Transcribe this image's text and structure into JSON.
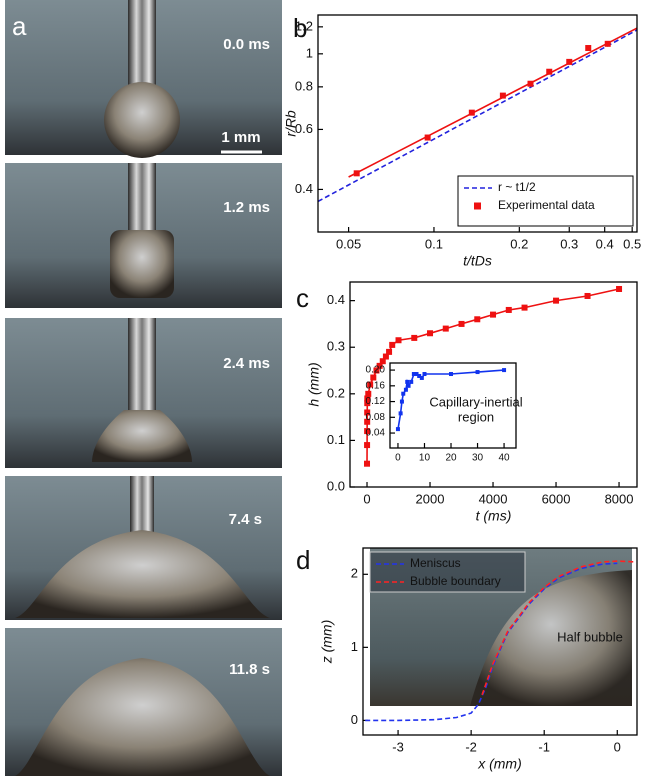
{
  "panel_a": {
    "label": "a",
    "frames": [
      "0.0 ms",
      "1.2 ms",
      "2.4 ms",
      "7.4 s",
      "11.8 s"
    ],
    "scale_bar": "1 mm"
  },
  "chart_data": [
    {
      "type": "line",
      "panel_label": "b",
      "xlabel": "t/tDs",
      "ylabel": "r/Rb",
      "xscale": "log",
      "yscale": "log",
      "xlim": [
        0.039,
        0.52
      ],
      "ylim": [
        0.3,
        1.3
      ],
      "xticks": [
        0.05,
        0.1,
        0.2,
        0.3,
        0.4,
        0.5
      ],
      "yticks": [
        0.4,
        0.6,
        0.8,
        1,
        1.2
      ],
      "legend": "lower right",
      "series": [
        {
          "name": "r ~ t1/2",
          "color": "#2222dd",
          "linestyle": "dashed",
          "x": [
            0.039,
            0.52
          ],
          "values": [
            0.369,
            1.175
          ]
        },
        {
          "color": "#ee1111",
          "linestyle": "solid",
          "x": [
            0.05,
            0.52
          ],
          "values": [
            0.435,
            1.19
          ]
        },
        {
          "name": "Experimental data",
          "color": "#ee1111",
          "linestyle": "none",
          "marker": "square",
          "x": [
            0.0534,
            0.095,
            0.136,
            0.175,
            0.219,
            0.255,
            0.3,
            0.35,
            0.41
          ],
          "values": [
            0.446,
            0.568,
            0.672,
            0.754,
            0.817,
            0.886,
            0.947,
            1.04,
            1.07
          ]
        }
      ]
    },
    {
      "type": "line",
      "panel_label": "c",
      "xlabel": "t (ms)",
      "ylabel": "h (mm)",
      "xlim": [
        -540,
        8570
      ],
      "ylim": [
        0,
        0.44
      ],
      "xticks": [
        0,
        2000,
        4000,
        6000,
        8000
      ],
      "yticks": [
        {
          "value": 0,
          "label": "0.0"
        },
        0.1,
        0.2,
        0.3,
        0.4
      ],
      "series": [
        {
          "color": "#ee1111",
          "linestyle": "solid",
          "marker": "square",
          "x": [
            0,
            2,
            4,
            5,
            6,
            8,
            10,
            20,
            40,
            100,
            200,
            300,
            400,
            500,
            600,
            700,
            800,
            1000,
            1500,
            2000,
            2500,
            3000,
            3500,
            4000,
            4500,
            5000,
            6000,
            7000,
            8000
          ],
          "values": [
            0.05,
            0.09,
            0.12,
            0.14,
            0.16,
            0.18,
            0.19,
            0.19,
            0.2,
            0.22,
            0.235,
            0.25,
            0.26,
            0.27,
            0.28,
            0.29,
            0.305,
            0.315,
            0.32,
            0.33,
            0.34,
            0.35,
            0.36,
            0.37,
            0.38,
            0.385,
            0.4,
            0.41,
            0.425
          ]
        }
      ]
    },
    {
      "type": "line",
      "annotations": [
        "Capillary-inertial",
        "region"
      ],
      "xlim": [
        -3,
        44.5
      ],
      "ylim": [
        0.002,
        0.218
      ],
      "xticks": [
        0,
        10,
        20,
        30,
        40
      ],
      "yticks": [
        0.04,
        0.08,
        0.12,
        0.16,
        {
          "value": 0.2,
          "label": "0.20"
        }
      ],
      "series": [
        {
          "color": "#1133ee",
          "linestyle": "solid",
          "marker": "square",
          "x": [
            0,
            1,
            1.5,
            2,
            3,
            3.5,
            4,
            5,
            6,
            7,
            8,
            9,
            10,
            20,
            30,
            40
          ],
          "values": [
            0.05,
            0.09,
            0.12,
            0.14,
            0.15,
            0.17,
            0.16,
            0.17,
            0.19,
            0.19,
            0.185,
            0.18,
            0.19,
            0.19,
            0.195,
            0.2
          ]
        }
      ]
    },
    {
      "type": "line",
      "panel_label": "d",
      "xlabel": "x (mm)",
      "ylabel": "z (mm)",
      "annotations": [
        "Half bubble"
      ],
      "xlim": [
        -3.48,
        0.27
      ],
      "ylim": [
        -0.2,
        2.36
      ],
      "xticks": [
        -3,
        -2,
        -1,
        0
      ],
      "yticks": [
        0,
        1,
        2
      ],
      "legend": "upper left",
      "series": [
        {
          "name": "Meniscus",
          "color": "#2233ee",
          "linestyle": "dashed",
          "x": [
            -3.45,
            -3,
            -2.5,
            -2.2,
            -2,
            -1.9,
            -1.8,
            -1.7,
            -1.5,
            -1.2,
            -1,
            -0.8,
            -0.5,
            -0.2,
            0
          ],
          "values": [
            0,
            0,
            0.01,
            0.04,
            0.1,
            0.22,
            0.45,
            0.75,
            1.2,
            1.6,
            1.8,
            1.95,
            2.08,
            2.14,
            2.15
          ]
        },
        {
          "name": "Bubble boundary",
          "color": "#ff2222",
          "linestyle": "dashed",
          "x": [
            -1.85,
            -1.7,
            -1.5,
            -1.2,
            -1,
            -0.8,
            -0.5,
            -0.2,
            0,
            0.25
          ],
          "values": [
            0.35,
            0.78,
            1.22,
            1.62,
            1.82,
            1.97,
            2.1,
            2.17,
            2.18,
            2.17
          ]
        }
      ]
    }
  ]
}
